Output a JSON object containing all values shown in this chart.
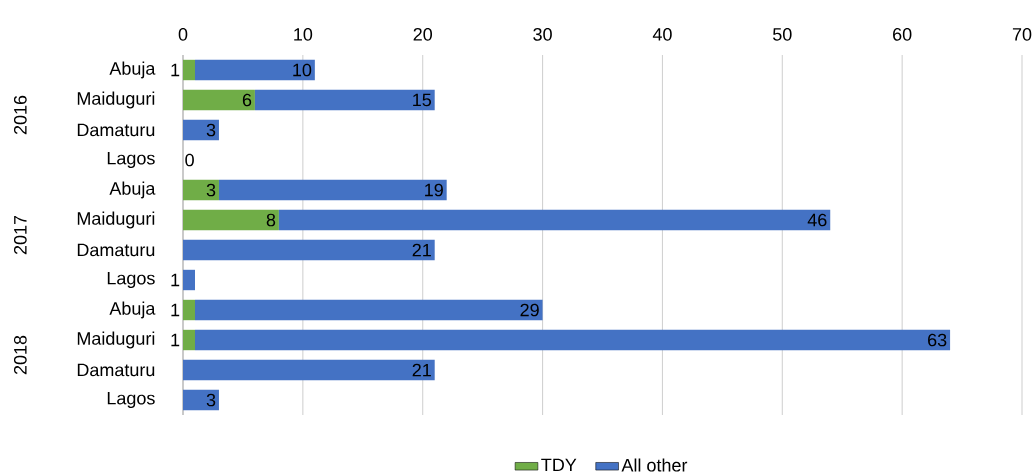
{
  "chart_data": {
    "type": "bar",
    "orientation": "horizontal",
    "stacked": true,
    "categories": [
      "Abuja",
      "Maiduguri",
      "Damaturu",
      "Lagos",
      "Abuja",
      "Maiduguri",
      "Damaturu",
      "Lagos",
      "Abuja",
      "Maiduguri",
      "Damaturu",
      "Lagos"
    ],
    "series": [
      {
        "name": "TDY",
        "color": "#70ad47",
        "values": [
          1,
          6,
          null,
          null,
          3,
          8,
          null,
          null,
          1,
          1,
          null,
          null
        ],
        "value_labels": [
          "1",
          "6",
          null,
          null,
          "3",
          "8",
          null,
          null,
          "1",
          "1",
          null,
          null
        ]
      },
      {
        "name": "All other",
        "color": "#4472c4",
        "values": [
          10,
          15,
          3,
          0,
          19,
          46,
          21,
          1,
          29,
          63,
          21,
          3
        ],
        "value_labels": [
          "10",
          "15",
          "3",
          "0",
          "19",
          "46",
          "21",
          "1",
          "29",
          "63",
          "21",
          "3"
        ]
      }
    ],
    "xlim": [
      0,
      70
    ],
    "xticks": [
      0,
      10,
      20,
      30,
      40,
      50,
      60,
      70
    ],
    "grid": "x",
    "legend": "bottom",
    "annotations": [
      "2016",
      "2017",
      "2018"
    ]
  }
}
